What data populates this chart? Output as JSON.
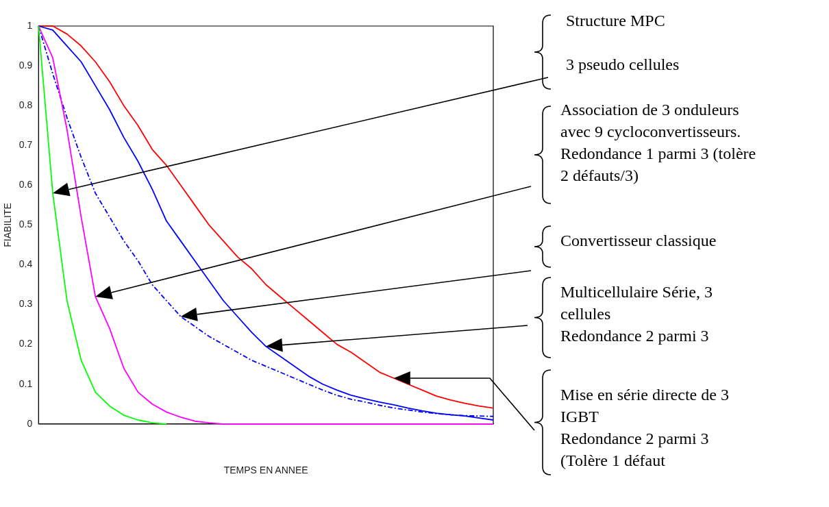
{
  "chart_data": {
    "type": "line",
    "xlabel": "TEMPS EN ANNEE",
    "ylabel": "FIABILITE",
    "categories": [
      null,
      null,
      null,
      null,
      null,
      null,
      null,
      null,
      null,
      null,
      null,
      null,
      null,
      null,
      null,
      null,
      null,
      null,
      null,
      null,
      null,
      null,
      null,
      null,
      null,
      null,
      null,
      null,
      null,
      null,
      null,
      null,
      null
    ],
    "series": [
      {
        "color": "#00ff00",
        "values": [
          1,
          0.58,
          0.31,
          0.16,
          0.08,
          0.045,
          0.022,
          0.01,
          0.003,
          0,
          null,
          null,
          null,
          null,
          null,
          null,
          null,
          null,
          null,
          null,
          null,
          null,
          null,
          null,
          null,
          null,
          null,
          null,
          null,
          null,
          null,
          null,
          null
        ]
      },
      {
        "color": "#ff00ff",
        "values": [
          1,
          0.92,
          0.74,
          0.52,
          0.32,
          0.24,
          0.14,
          0.08,
          0.05,
          0.03,
          0.017,
          0.007,
          0.003,
          0,
          0,
          0,
          0,
          0,
          0,
          0,
          0,
          0,
          0,
          0,
          0,
          0,
          0,
          0,
          0,
          0,
          0,
          0,
          0
        ]
      },
      {
        "color": "#0000ff",
        "line_style": "dashed",
        "values": [
          1,
          0.88,
          0.77,
          0.67,
          0.58,
          0.52,
          0.46,
          0.41,
          0.35,
          0.31,
          0.27,
          0.245,
          0.22,
          0.2,
          0.18,
          0.16,
          0.145,
          0.13,
          0.115,
          0.1,
          0.085,
          0.072,
          0.062,
          0.055,
          0.047,
          0.04,
          0.035,
          0.03,
          0.026,
          0.023,
          0.021,
          0.02,
          0.019
        ]
      },
      {
        "color": "#0000ff",
        "line_style": "solid",
        "values": [
          1,
          0.99,
          0.95,
          0.91,
          0.85,
          0.79,
          0.72,
          0.66,
          0.59,
          0.51,
          0.46,
          0.41,
          0.36,
          0.31,
          0.27,
          0.23,
          0.195,
          0.17,
          0.145,
          0.12,
          0.1,
          0.085,
          0.072,
          0.063,
          0.055,
          0.048,
          0.04,
          0.033,
          0.027,
          0.023,
          0.02,
          0.015,
          0.01
        ]
      },
      {
        "color": "#ff0000",
        "line_style": "solid",
        "values": [
          1,
          1,
          0.98,
          0.95,
          0.91,
          0.86,
          0.8,
          0.75,
          0.69,
          0.65,
          0.6,
          0.55,
          0.5,
          0.46,
          0.42,
          0.39,
          0.35,
          0.32,
          0.29,
          0.26,
          0.23,
          0.2,
          0.18,
          0.155,
          0.13,
          0.115,
          0.1,
          0.085,
          0.07,
          0.06,
          0.052,
          0.045,
          0.04
        ]
      }
    ],
    "ylim": [
      0,
      1
    ],
    "yticks": [
      0,
      0.1,
      0.2,
      0.3,
      0.4,
      0.5,
      0.6,
      0.7,
      0.8,
      0.9,
      1
    ],
    "grid": false,
    "legend": false,
    "marker": "none",
    "annotations": [
      "Structure MPC\n\n3 pseudo cellules",
      "Association de 3 onduleurs\navec 9 cycloconvertisseurs.\nRedondance 1 parmi 3 (tolère\n2 défauts/3)",
      "Convertisseur classique",
      "Multicellulaire Série, 3\ncellules\nRedondance 2 parmi 3",
      "Mise en série directe de 3\nIGBT\nRedondance 2 parmi 3\n(Tolère 1 défaut"
    ]
  }
}
